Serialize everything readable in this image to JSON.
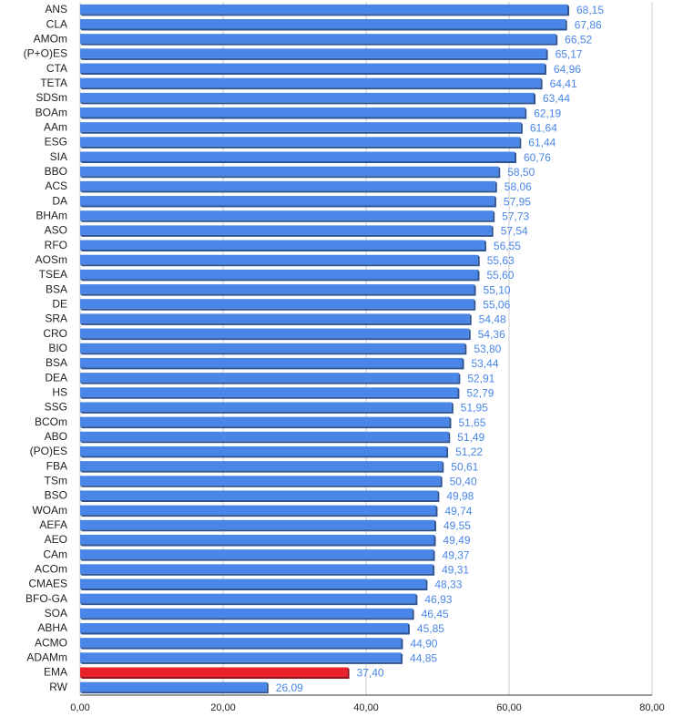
{
  "chart_data": {
    "type": "bar",
    "orientation": "horizontal",
    "title": "",
    "xlabel": "",
    "ylabel": "",
    "xlim": [
      0,
      80
    ],
    "x_ticks": [
      "0,00",
      "20,00",
      "40,00",
      "60,00",
      "80,00"
    ],
    "grid": true,
    "legend": "none",
    "colors": {
      "default": "#4a86e8",
      "highlight": "#e8212b",
      "label_default": "#4a86e8",
      "label_highlight": "#4a86e8"
    },
    "highlight_category": "EMA",
    "categories": [
      "ANS",
      "CLA",
      "AMOm",
      "(P+O)ES",
      "CTA",
      "TETA",
      "SDSm",
      "BOAm",
      "AAm",
      "ESG",
      "SIA",
      "BBO",
      "ACS",
      "DA",
      "BHAm",
      "ASO",
      "RFO",
      "AOSm",
      "TSEA",
      "BSA",
      "DE",
      "SRA",
      "CRO",
      "BIO",
      "BSA",
      "DEA",
      "HS",
      "SSG",
      "BCOm",
      "ABO",
      "(PO)ES",
      "FBA",
      "TSm",
      "BSO",
      "WOAm",
      "AEFA",
      "AEO",
      "CAm",
      "ACOm",
      "CMAES",
      "BFO-GA",
      "SOA",
      "ABHA",
      "ACMO",
      "ADAMm",
      "EMA",
      "RW"
    ],
    "values": [
      68.15,
      67.86,
      66.52,
      65.17,
      64.96,
      64.41,
      63.44,
      62.19,
      61.64,
      61.44,
      60.76,
      58.5,
      58.06,
      57.95,
      57.73,
      57.54,
      56.55,
      55.63,
      55.6,
      55.1,
      55.06,
      54.48,
      54.36,
      53.8,
      53.44,
      52.91,
      52.79,
      51.95,
      51.65,
      51.49,
      51.22,
      50.61,
      50.4,
      49.98,
      49.74,
      49.55,
      49.49,
      49.37,
      49.31,
      48.33,
      46.93,
      46.45,
      45.85,
      44.9,
      44.85,
      37.4,
      26.09
    ],
    "value_labels": [
      "68,15",
      "67,86",
      "66,52",
      "65,17",
      "64,96",
      "64,41",
      "63,44",
      "62,19",
      "61,64",
      "61,44",
      "60,76",
      "58,50",
      "58,06",
      "57,95",
      "57,73",
      "57,54",
      "56,55",
      "55,63",
      "55,60",
      "55,10",
      "55,06",
      "54,48",
      "54,36",
      "53,80",
      "53,44",
      "52,91",
      "52,79",
      "51,95",
      "51,65",
      "51,49",
      "51,22",
      "50,61",
      "50,40",
      "49,98",
      "49,74",
      "49,55",
      "49,49",
      "49,37",
      "49,31",
      "48,33",
      "46,93",
      "46,45",
      "45,85",
      "44,90",
      "44,85",
      "37,40",
      "26,09"
    ]
  }
}
